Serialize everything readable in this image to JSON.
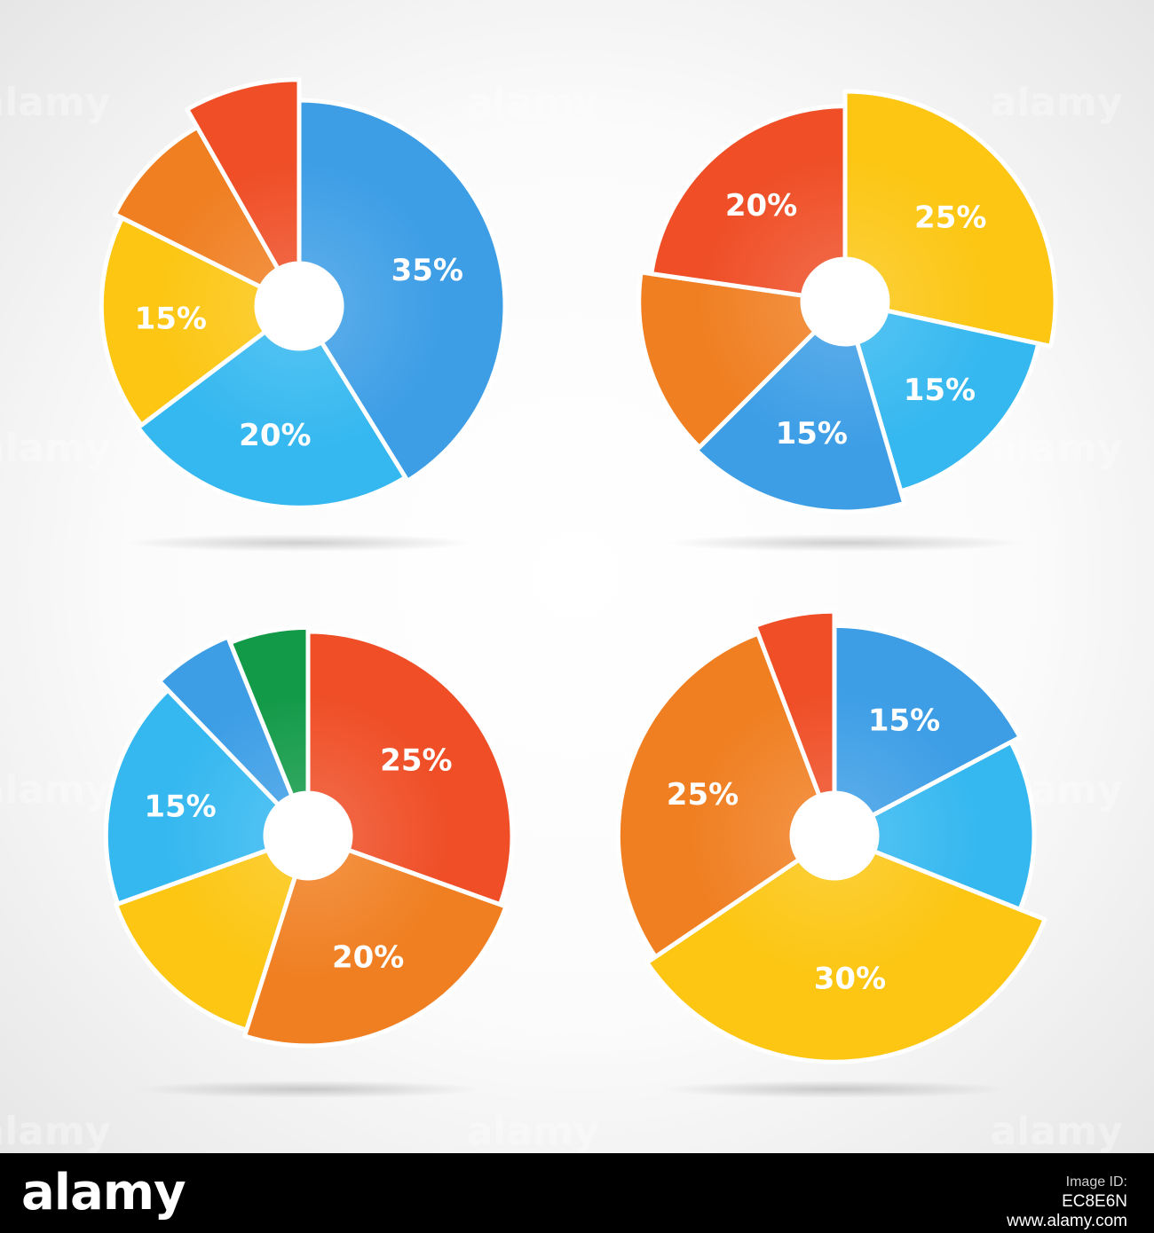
{
  "chart_data": [
    {
      "type": "pie",
      "title": "",
      "slices": [
        {
          "value": 35,
          "label": "35%",
          "color": "#3d9ee6"
        },
        {
          "value": 20,
          "label": "20%",
          "color": "#35b8f0"
        },
        {
          "value": 15,
          "label": "15%",
          "color": "#fcc612"
        },
        {
          "value": 8,
          "label": "",
          "color": "#f07f22",
          "exploded": true
        },
        {
          "value": 7,
          "label": "",
          "color": "#ef4e26",
          "exploded": true
        }
      ]
    },
    {
      "type": "pie",
      "title": "",
      "slices": [
        {
          "value": 25,
          "label": "25%",
          "color": "#fcc612"
        },
        {
          "value": 15,
          "label": "15%",
          "color": "#35b8f0"
        },
        {
          "value": 15,
          "label": "15%",
          "color": "#3d9ee6"
        },
        {
          "value": 13,
          "label": "",
          "color": "#f07f22",
          "exploded": true
        },
        {
          "value": 20,
          "label": "20%",
          "color": "#ef4e26"
        }
      ]
    },
    {
      "type": "pie",
      "title": "",
      "slices": [
        {
          "value": 25,
          "label": "25%",
          "color": "#ef4e26"
        },
        {
          "value": 20,
          "label": "20%",
          "color": "#f07f22"
        },
        {
          "value": 12,
          "label": "",
          "color": "#fcc612"
        },
        {
          "value": 15,
          "label": "15%",
          "color": "#35b8f0"
        },
        {
          "value": 5,
          "label": "",
          "color": "#3d9ee6",
          "exploded": true
        },
        {
          "value": 5,
          "label": "",
          "color": "#129a48",
          "exploded": true
        }
      ]
    },
    {
      "type": "pie",
      "title": "",
      "slices": [
        {
          "value": 15,
          "label": "15%",
          "color": "#3d9ee6"
        },
        {
          "value": 12,
          "label": "",
          "color": "#35b8f0"
        },
        {
          "value": 30,
          "label": "30%",
          "color": "#fcc612"
        },
        {
          "value": 25,
          "label": "25%",
          "color": "#f07f22"
        },
        {
          "value": 5,
          "label": "",
          "color": "#ef4e26",
          "exploded": true
        }
      ]
    }
  ],
  "watermark": "alamy",
  "footer": {
    "brand": "alamy",
    "image_id_label": "Image ID:",
    "image_id": "EC8E6N",
    "url": "www.alamy.com"
  }
}
